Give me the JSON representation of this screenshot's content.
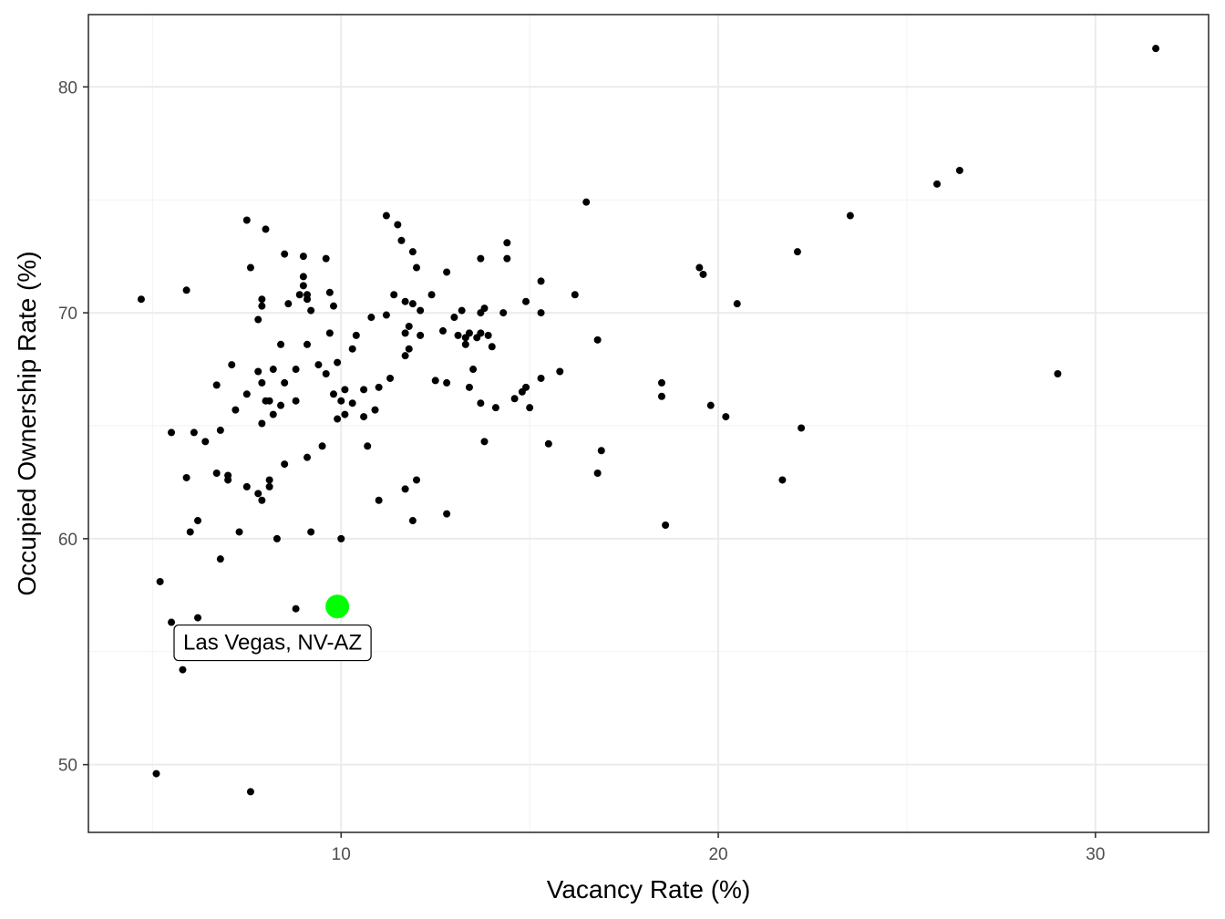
{
  "chart_data": {
    "type": "scatter",
    "title": "",
    "xlabel": "Vacancy Rate (%)",
    "ylabel": "Occupied Ownership Rate (%)",
    "xlim": [
      3.3,
      33.0
    ],
    "ylim": [
      47.0,
      83.2
    ],
    "x_ticks": [
      10,
      20,
      30
    ],
    "y_ticks": [
      50,
      60,
      70,
      80
    ],
    "x_tick_labels": [
      "10",
      "20",
      "30"
    ],
    "y_tick_labels": [
      "50",
      "60",
      "70",
      "80"
    ],
    "grid": true,
    "legend": "none",
    "point_color": "#000000",
    "highlight_color": "#00ff00",
    "highlight": {
      "label": "Las Vegas, NV-AZ",
      "x": 9.9,
      "y": 57.0
    },
    "points": [
      [
        4.7,
        70.6
      ],
      [
        5.1,
        49.6
      ],
      [
        5.2,
        58.1
      ],
      [
        5.5,
        64.7
      ],
      [
        5.5,
        56.3
      ],
      [
        5.8,
        54.2
      ],
      [
        5.9,
        71.0
      ],
      [
        5.9,
        62.7
      ],
      [
        6.0,
        60.3
      ],
      [
        6.1,
        64.7
      ],
      [
        6.2,
        56.5
      ],
      [
        6.2,
        60.8
      ],
      [
        6.4,
        64.3
      ],
      [
        6.7,
        62.9
      ],
      [
        6.7,
        66.8
      ],
      [
        6.8,
        64.8
      ],
      [
        6.8,
        59.1
      ],
      [
        7.0,
        62.6
      ],
      [
        7.0,
        62.8
      ],
      [
        7.1,
        67.7
      ],
      [
        7.2,
        65.7
      ],
      [
        7.3,
        60.3
      ],
      [
        7.5,
        62.3
      ],
      [
        7.5,
        66.4
      ],
      [
        7.5,
        74.1
      ],
      [
        7.6,
        72.0
      ],
      [
        7.6,
        48.8
      ],
      [
        7.8,
        62.0
      ],
      [
        7.8,
        69.7
      ],
      [
        7.8,
        67.4
      ],
      [
        7.9,
        70.3
      ],
      [
        7.9,
        70.6
      ],
      [
        7.9,
        66.9
      ],
      [
        7.9,
        65.1
      ],
      [
        7.9,
        61.7
      ],
      [
        8.0,
        73.7
      ],
      [
        8.0,
        66.1
      ],
      [
        8.1,
        66.1
      ],
      [
        8.1,
        62.6
      ],
      [
        8.1,
        62.3
      ],
      [
        8.2,
        65.5
      ],
      [
        8.2,
        67.5
      ],
      [
        8.3,
        60.0
      ],
      [
        8.4,
        68.6
      ],
      [
        8.4,
        65.9
      ],
      [
        8.5,
        63.3
      ],
      [
        8.5,
        66.9
      ],
      [
        8.5,
        72.6
      ],
      [
        8.6,
        70.4
      ],
      [
        8.8,
        67.5
      ],
      [
        8.8,
        66.1
      ],
      [
        8.8,
        56.9
      ],
      [
        8.9,
        70.8
      ],
      [
        9.0,
        71.6
      ],
      [
        9.0,
        72.5
      ],
      [
        9.0,
        71.2
      ],
      [
        9.1,
        70.8
      ],
      [
        9.1,
        70.6
      ],
      [
        9.1,
        68.6
      ],
      [
        9.1,
        63.6
      ],
      [
        9.2,
        60.3
      ],
      [
        9.2,
        70.1
      ],
      [
        9.4,
        67.7
      ],
      [
        9.5,
        64.1
      ],
      [
        9.6,
        72.4
      ],
      [
        9.6,
        67.3
      ],
      [
        9.7,
        70.9
      ],
      [
        9.7,
        69.1
      ],
      [
        9.8,
        70.3
      ],
      [
        9.8,
        66.4
      ],
      [
        9.9,
        67.8
      ],
      [
        9.9,
        65.3
      ],
      [
        10.0,
        66.1
      ],
      [
        10.0,
        60.0
      ],
      [
        10.1,
        66.6
      ],
      [
        10.1,
        65.5
      ],
      [
        10.3,
        66.0
      ],
      [
        10.3,
        68.4
      ],
      [
        10.4,
        69.0
      ],
      [
        10.6,
        66.6
      ],
      [
        10.6,
        65.4
      ],
      [
        10.7,
        64.1
      ],
      [
        10.8,
        69.8
      ],
      [
        10.9,
        65.7
      ],
      [
        11.0,
        66.7
      ],
      [
        11.0,
        61.7
      ],
      [
        11.2,
        69.9
      ],
      [
        11.2,
        74.3
      ],
      [
        11.3,
        67.1
      ],
      [
        11.4,
        70.8
      ],
      [
        11.5,
        73.9
      ],
      [
        11.6,
        73.2
      ],
      [
        11.7,
        70.5
      ],
      [
        11.7,
        69.1
      ],
      [
        11.7,
        68.1
      ],
      [
        11.7,
        62.2
      ],
      [
        11.8,
        69.4
      ],
      [
        11.8,
        68.4
      ],
      [
        11.9,
        72.7
      ],
      [
        11.9,
        70.4
      ],
      [
        11.9,
        60.8
      ],
      [
        12.0,
        72.0
      ],
      [
        12.0,
        62.6
      ],
      [
        12.1,
        70.1
      ],
      [
        12.1,
        69.0
      ],
      [
        12.4,
        70.8
      ],
      [
        12.5,
        67.0
      ],
      [
        12.7,
        69.2
      ],
      [
        12.8,
        71.8
      ],
      [
        12.8,
        61.1
      ],
      [
        12.8,
        66.9
      ],
      [
        13.0,
        69.8
      ],
      [
        13.1,
        69.0
      ],
      [
        13.2,
        70.1
      ],
      [
        13.3,
        68.6
      ],
      [
        13.3,
        68.9
      ],
      [
        13.4,
        69.1
      ],
      [
        13.4,
        66.7
      ],
      [
        13.5,
        67.5
      ],
      [
        13.6,
        68.9
      ],
      [
        13.7,
        72.4
      ],
      [
        13.7,
        70.0
      ],
      [
        13.7,
        69.1
      ],
      [
        13.7,
        66.0
      ],
      [
        13.8,
        64.3
      ],
      [
        13.8,
        70.2
      ],
      [
        13.9,
        69.0
      ],
      [
        14.0,
        68.5
      ],
      [
        14.1,
        65.8
      ],
      [
        14.3,
        70.0
      ],
      [
        14.4,
        73.1
      ],
      [
        14.4,
        72.4
      ],
      [
        14.6,
        66.2
      ],
      [
        14.8,
        66.5
      ],
      [
        14.9,
        66.7
      ],
      [
        14.9,
        70.5
      ],
      [
        15.0,
        65.8
      ],
      [
        15.3,
        67.1
      ],
      [
        15.3,
        71.4
      ],
      [
        15.3,
        70.0
      ],
      [
        15.5,
        64.2
      ],
      [
        15.8,
        67.4
      ],
      [
        16.2,
        70.8
      ],
      [
        16.5,
        74.9
      ],
      [
        16.8,
        62.9
      ],
      [
        16.8,
        68.8
      ],
      [
        16.9,
        63.9
      ],
      [
        18.5,
        66.9
      ],
      [
        18.5,
        66.3
      ],
      [
        18.6,
        60.6
      ],
      [
        19.5,
        72.0
      ],
      [
        19.6,
        71.7
      ],
      [
        19.8,
        65.9
      ],
      [
        20.2,
        65.4
      ],
      [
        20.5,
        70.4
      ],
      [
        21.7,
        62.6
      ],
      [
        22.1,
        72.7
      ],
      [
        22.2,
        64.9
      ],
      [
        23.5,
        74.3
      ],
      [
        25.8,
        75.7
      ],
      [
        26.4,
        76.3
      ],
      [
        29.0,
        67.3
      ],
      [
        31.6,
        81.7
      ]
    ]
  }
}
